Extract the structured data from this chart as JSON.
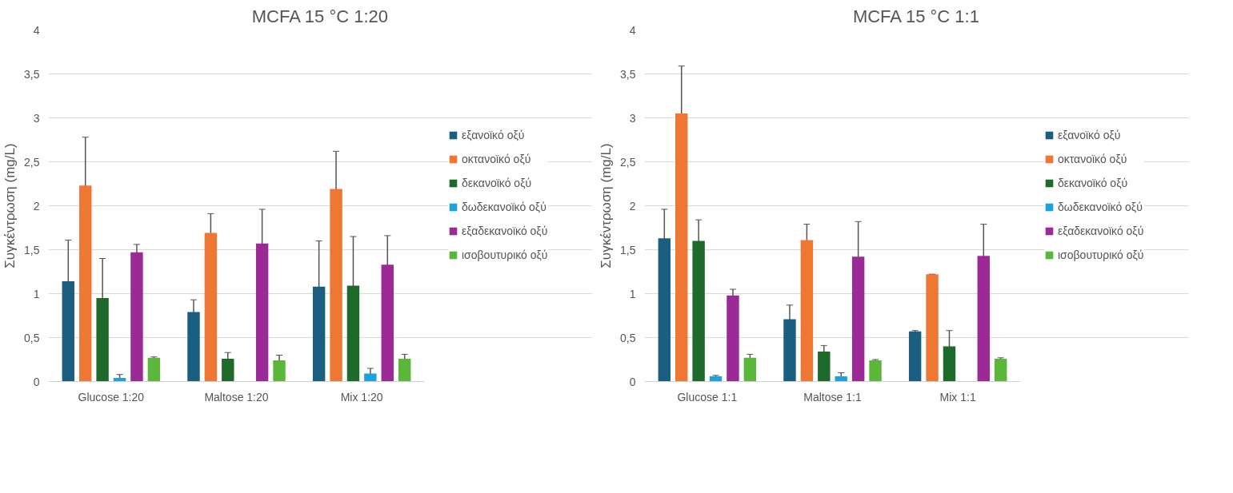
{
  "chart_data": [
    {
      "type": "bar",
      "title": "MCFA 15 °C 1:20",
      "ylabel": "Συγκέντρωση (mg/L)",
      "categories": [
        "Glucose 1:20",
        "Maltose 1:20",
        "Mix 1:20"
      ],
      "ylim": [
        0,
        4
      ],
      "yticks": [
        0,
        {
          "value": 0.5,
          "label": "0,5"
        },
        1,
        {
          "value": 1.5,
          "label": "1,5"
        },
        2,
        {
          "value": 2.5,
          "label": "2,5"
        },
        3,
        {
          "value": 3.5,
          "label": "3,5"
        },
        4
      ],
      "grid": "y",
      "legend": "right",
      "series": [
        {
          "name": "εξανοϊκό οξύ",
          "color": "#1a5e80",
          "values": [
            1.14,
            0.79,
            1.08
          ],
          "errors": [
            0.47,
            0.14,
            0.52
          ]
        },
        {
          "name": "οκτανοϊκό οξύ",
          "color": "#ee7734",
          "values": [
            2.23,
            1.69,
            2.19
          ],
          "errors": [
            0.55,
            0.22,
            0.43
          ]
        },
        {
          "name": "δεκανοϊκό οξύ",
          "color": "#1e6a2a",
          "values": [
            0.95,
            0.26,
            1.09
          ],
          "errors": [
            0.45,
            0.07,
            0.56
          ]
        },
        {
          "name": "δωδεκανοϊκό οξύ",
          "color": "#1aa3dc",
          "values": [
            0.04,
            null,
            0.09
          ],
          "errors": [
            [
              0.02,
              0.08
            ],
            null,
            0.06
          ]
        },
        {
          "name": "εξαδεκανοϊκό οξύ",
          "color": "#9b2a96",
          "values": [
            1.47,
            1.57,
            1.33
          ],
          "errors": [
            0.09,
            0.39,
            0.33
          ]
        },
        {
          "name": "ισοβουτυρικό οξύ",
          "color": "#5bb73a",
          "values": [
            0.27,
            0.24,
            0.26
          ],
          "errors": [
            0.01,
            0.06,
            0.05
          ]
        }
      ]
    },
    {
      "type": "bar",
      "title": "MCFA 15 °C 1:1",
      "ylabel": "Συγκέντρωση (mg/L)",
      "categories": [
        "Glucose 1:1",
        "Maltose 1:1",
        "Mix 1:1"
      ],
      "ylim": [
        0,
        4
      ],
      "yticks": [
        0,
        {
          "value": 0.5,
          "label": "0,5"
        },
        1,
        {
          "value": 1.5,
          "label": "1,5"
        },
        2,
        {
          "value": 2.5,
          "label": "2,5"
        },
        3,
        {
          "value": 3.5,
          "label": "3,5"
        },
        4
      ],
      "grid": "y",
      "legend": "right",
      "series": [
        {
          "name": "εξανοϊκό οξύ",
          "color": "#1a5e80",
          "values": [
            1.63,
            0.71,
            0.57
          ],
          "errors": [
            0.33,
            0.16,
            0.01
          ]
        },
        {
          "name": "οκτανοϊκό οξύ",
          "color": "#ee7734",
          "values": [
            3.05,
            1.61,
            1.22
          ],
          "errors": [
            0.54,
            0.18,
            0
          ]
        },
        {
          "name": "δεκανοϊκό οξύ",
          "color": "#1e6a2a",
          "values": [
            1.6,
            0.34,
            0.4
          ],
          "errors": [
            0.24,
            0.07,
            0.18
          ]
        },
        {
          "name": "δωδεκανοϊκό οξύ",
          "color": "#1aa3dc",
          "values": [
            0.06,
            0.06,
            null
          ],
          "errors": [
            0.01,
            0.04,
            null
          ]
        },
        {
          "name": "εξαδεκανοϊκό οξύ",
          "color": "#9b2a96",
          "values": [
            0.98,
            1.42,
            1.43
          ],
          "errors": [
            0.07,
            0.4,
            0.36
          ]
        },
        {
          "name": "ισοβουτυρικό οξύ",
          "color": "#5bb73a",
          "values": [
            0.27,
            0.24,
            0.26
          ],
          "errors": [
            0.04,
            0.01,
            0.01
          ]
        }
      ]
    }
  ]
}
